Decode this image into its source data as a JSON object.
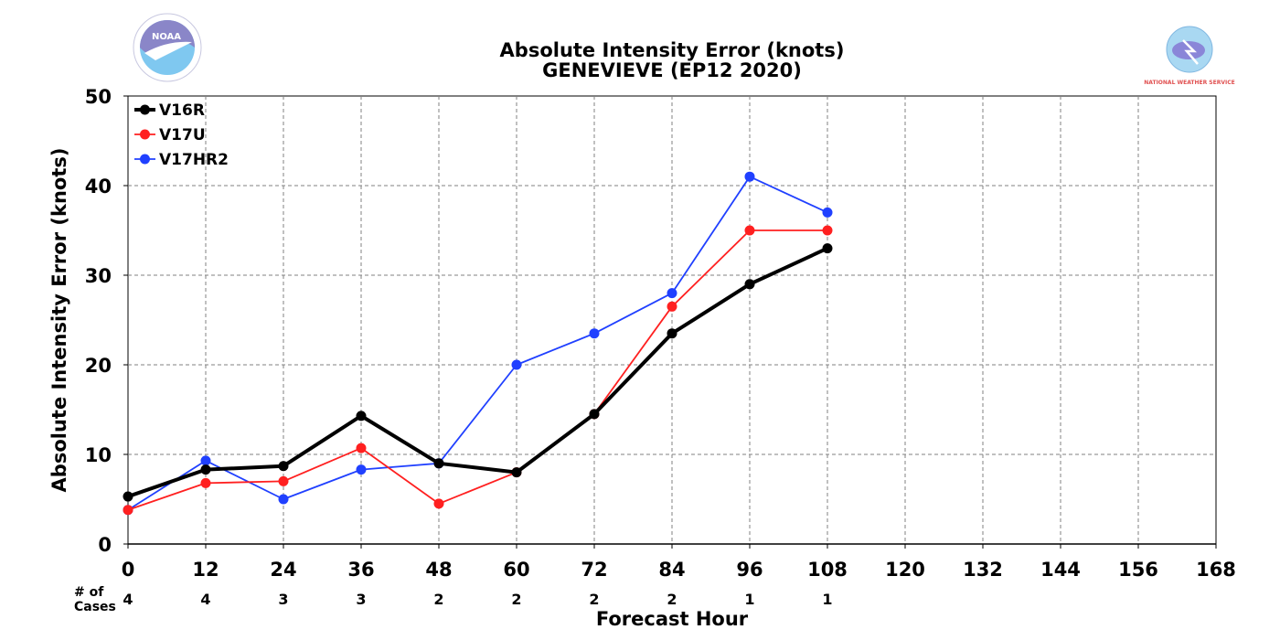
{
  "header": {
    "logo_left": "NOAA",
    "logo_right": "NATIONAL WEATHER SERVICE"
  },
  "chart_data": {
    "type": "line",
    "title": "Absolute Intensity Error (knots)",
    "subtitle": "GENEVIEVE (EP12 2020)",
    "xlabel": "Forecast Hour",
    "ylabel": "Absolute Intensity Error (knots)",
    "xlim": [
      0,
      168
    ],
    "ylim": [
      0,
      50
    ],
    "x_ticks": [
      0,
      12,
      24,
      36,
      48,
      60,
      72,
      84,
      96,
      108,
      120,
      132,
      144,
      156,
      168
    ],
    "y_ticks": [
      0,
      10,
      20,
      30,
      40,
      50
    ],
    "grid": true,
    "legend_position": "top-left",
    "cases_label": "# of\nCases",
    "cases": [
      {
        "x": 0,
        "n": "4"
      },
      {
        "x": 12,
        "n": "4"
      },
      {
        "x": 24,
        "n": "3"
      },
      {
        "x": 36,
        "n": "3"
      },
      {
        "x": 48,
        "n": "2"
      },
      {
        "x": 60,
        "n": "2"
      },
      {
        "x": 72,
        "n": "2"
      },
      {
        "x": 84,
        "n": "2"
      },
      {
        "x": 96,
        "n": "1"
      },
      {
        "x": 108,
        "n": "1"
      }
    ],
    "series": [
      {
        "name": "V16R",
        "color": "#000000",
        "x": [
          0,
          12,
          24,
          36,
          48,
          60,
          72,
          84,
          96,
          108
        ],
        "values": [
          5.3,
          8.3,
          8.7,
          14.3,
          9.0,
          8.0,
          14.5,
          23.5,
          29.0,
          33.0
        ]
      },
      {
        "name": "V17U",
        "color": "#ff2020",
        "x": [
          0,
          12,
          24,
          36,
          48,
          60,
          72,
          84,
          96,
          108
        ],
        "values": [
          3.8,
          6.8,
          7.0,
          10.7,
          4.5,
          8.0,
          14.5,
          26.5,
          35.0,
          35.0
        ]
      },
      {
        "name": "V17HR2",
        "color": "#2040ff",
        "x": [
          0,
          12,
          24,
          36,
          48,
          60,
          72,
          84,
          96,
          108
        ],
        "values": [
          3.8,
          9.3,
          5.0,
          8.3,
          9.0,
          20.0,
          23.5,
          28.0,
          41.0,
          37.0
        ]
      }
    ]
  }
}
